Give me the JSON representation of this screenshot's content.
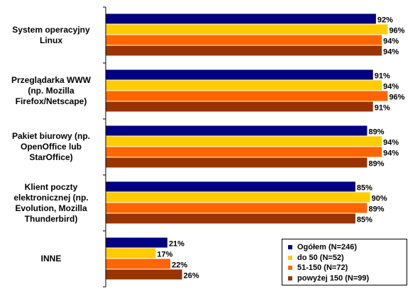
{
  "chart_data": {
    "type": "bar",
    "orientation": "horizontal",
    "categories": [
      "System operacyjny\nLinux",
      "Przeglądarka WWW\n(np. Mozilla\nFirefox/Netscape)",
      "Pakiet biurowy (np.\nOpenOffice lub\nStarOffice)",
      "Klient poczty\nelektronicznej (np.\nEvolution, Mozilla\nThunderbird)",
      "INNE"
    ],
    "series": [
      {
        "name": "Ogółem (N=246)",
        "color": "#000080",
        "values": [
          92,
          91,
          89,
          85,
          21
        ]
      },
      {
        "name": "do 50 (N=52)",
        "color": "#FFCC00",
        "values": [
          96,
          94,
          94,
          90,
          17
        ]
      },
      {
        "name": "51-150 (N=72)",
        "color": "#FF6600",
        "values": [
          94,
          96,
          94,
          89,
          22
        ]
      },
      {
        "name": "powyżej 150 (N=99)",
        "color": "#993300",
        "values": [
          94,
          91,
          89,
          85,
          26
        ]
      }
    ],
    "value_suffix": "%",
    "xlim": [
      0,
      100
    ],
    "grid": false,
    "legend_position": "bottom-right",
    "title": "",
    "xlabel": "",
    "ylabel": ""
  }
}
